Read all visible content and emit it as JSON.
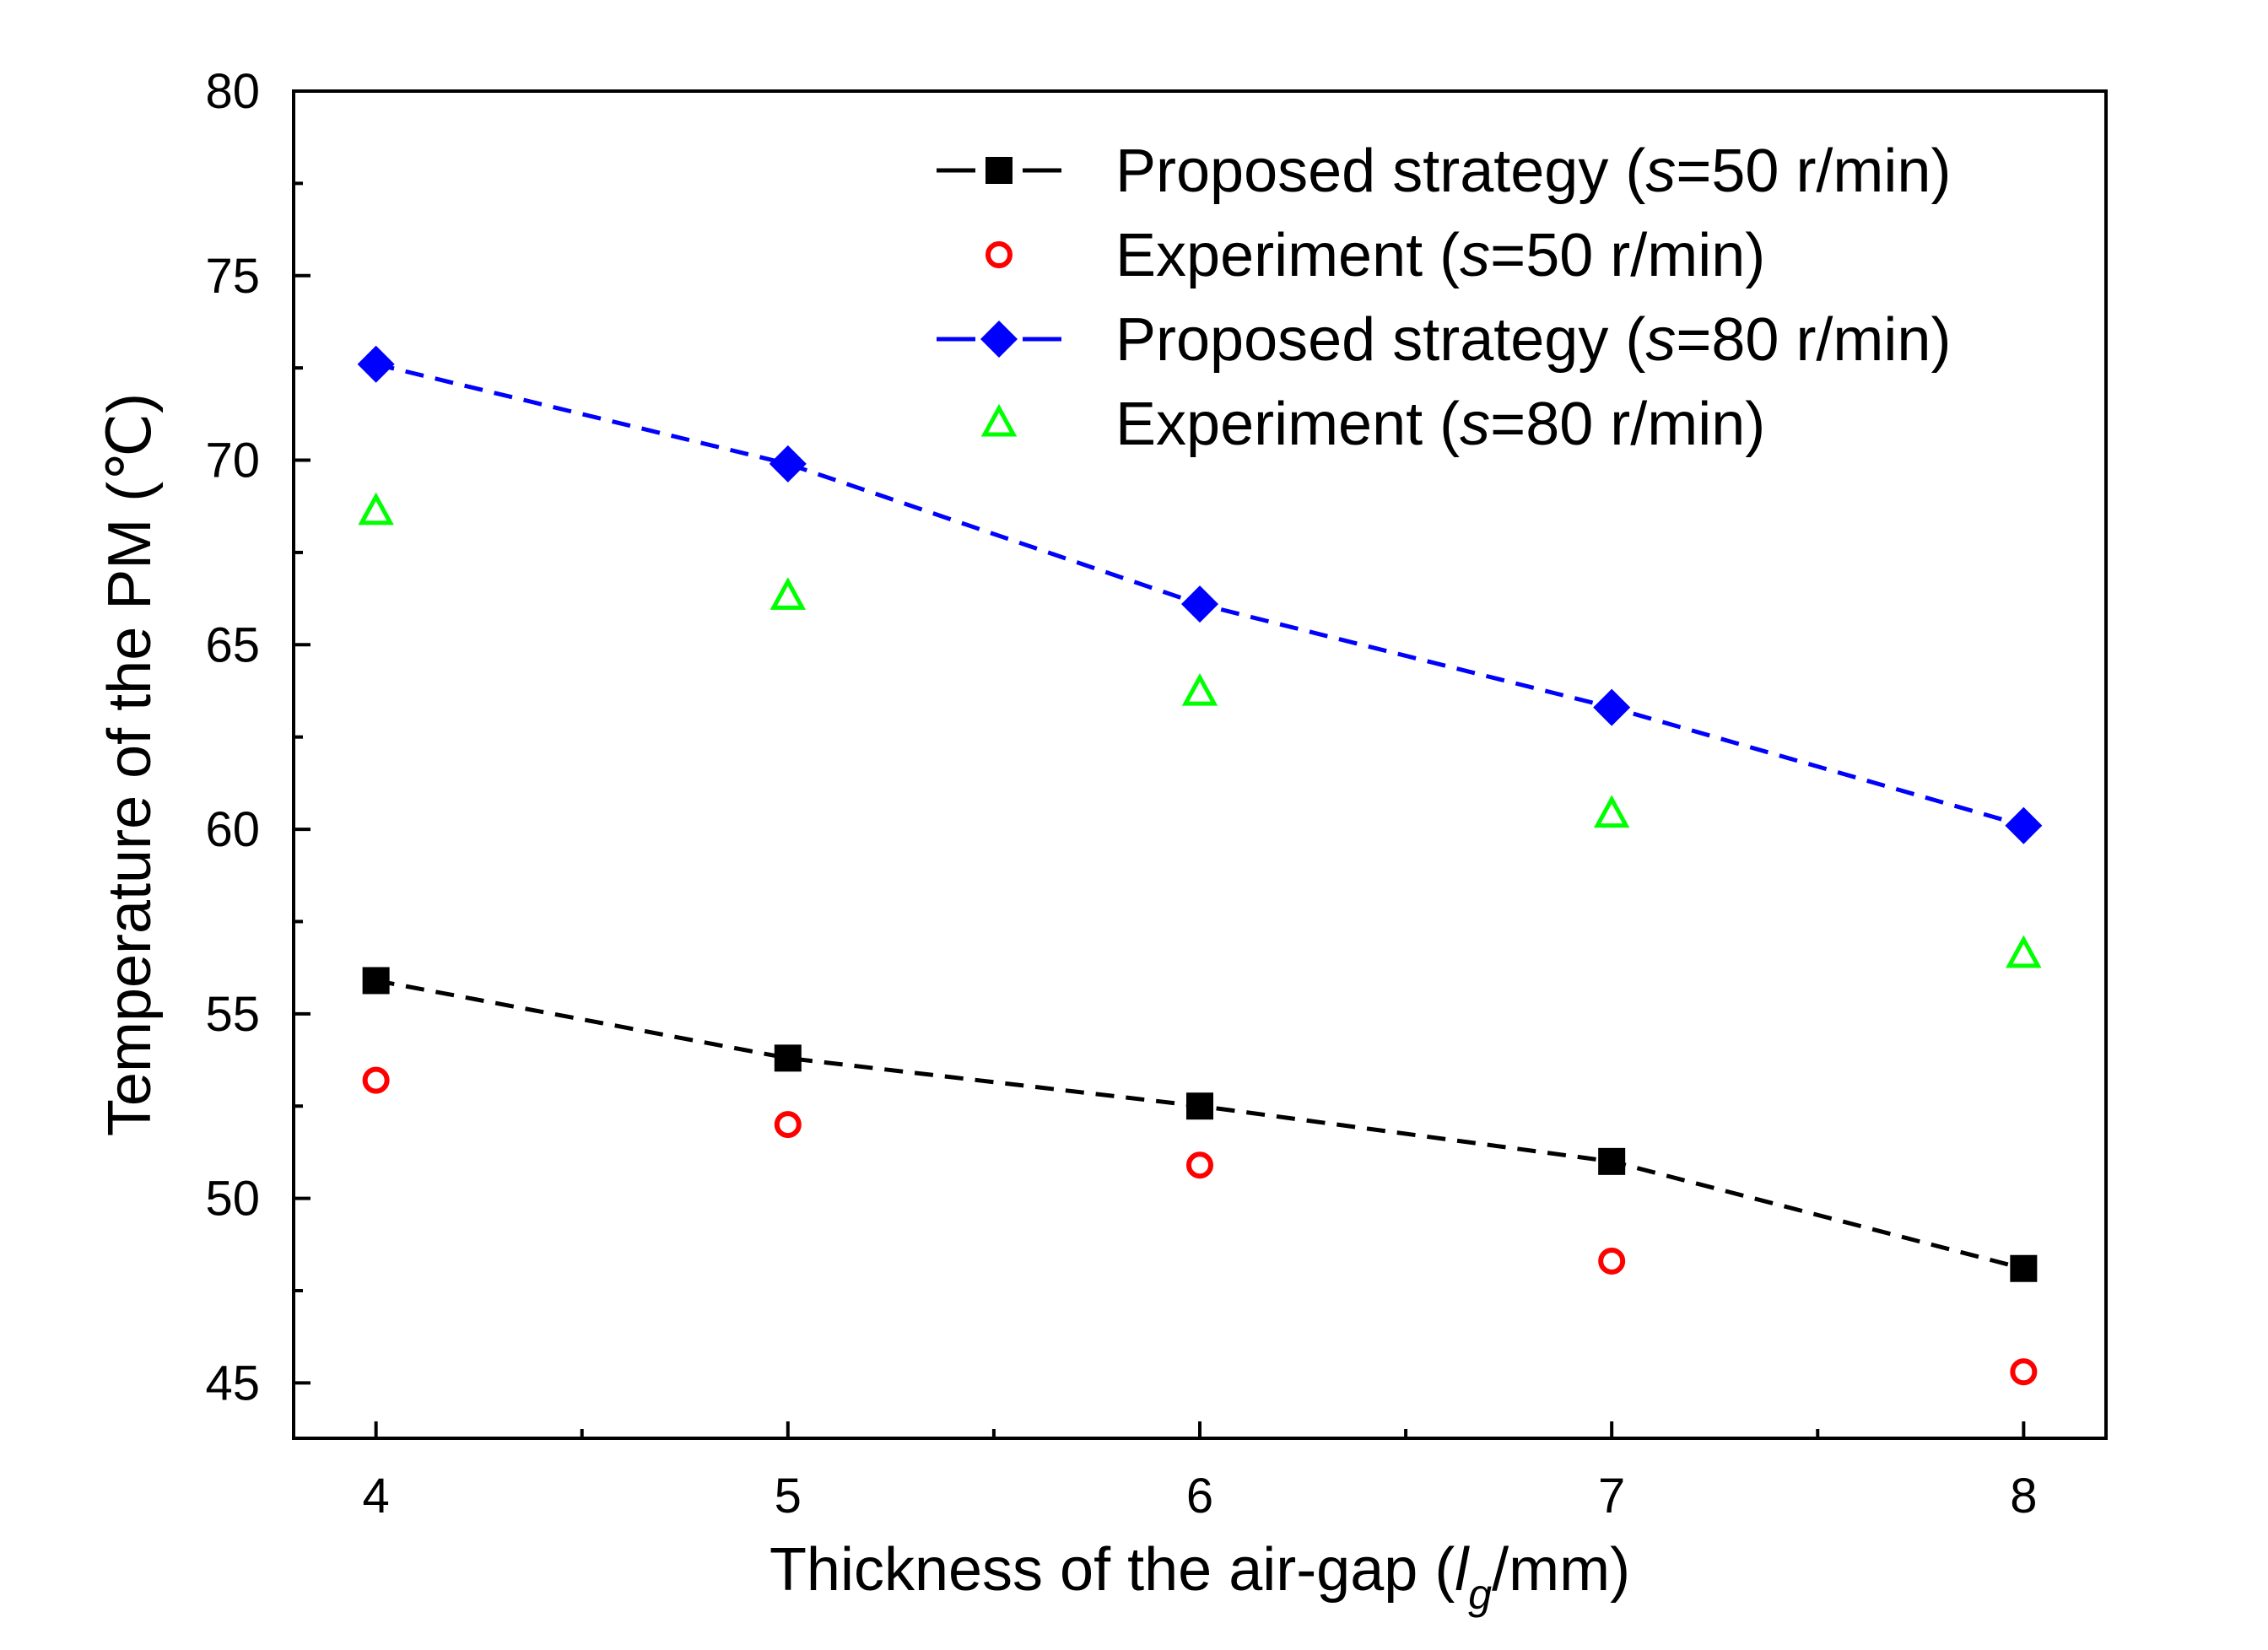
{
  "chart_data": {
    "type": "scatter",
    "xlabel": {
      "pre": "Thickness of the air-gap (",
      "var": "l",
      "sub": "g",
      "post": "/mm)"
    },
    "ylabel": "Temperature of the PM (℃)",
    "xlim": [
      3.8,
      8.2
    ],
    "ylim": [
      43.5,
      80
    ],
    "xticks": [
      4,
      5,
      6,
      7,
      8
    ],
    "yticks": [
      45,
      50,
      55,
      60,
      65,
      70,
      75,
      80
    ],
    "x": [
      4,
      5,
      6,
      7,
      8
    ],
    "series": [
      {
        "name": "Proposed strategy (s=50 r/min)",
        "label_pre": "Proposed strategy (",
        "label_var": "s",
        "label_post": "=50 r/min)",
        "values": [
          55.9,
          53.8,
          52.5,
          51.0,
          48.1
        ],
        "marker": "square",
        "color": "#000000",
        "line": "dashed"
      },
      {
        "name": "Experiment (s=50 r/min)",
        "label_pre": "Experiment (",
        "label_var": "s",
        "label_post": "=50 r/min)",
        "values": [
          53.2,
          52.0,
          50.9,
          48.3,
          45.3
        ],
        "marker": "circle-open",
        "color": "#ff0000",
        "line": "none"
      },
      {
        "name": "Proposed strategy (s=80 r/min)",
        "label_pre": "Proposed strategy (",
        "label_var": "s",
        "label_post": "=80 r/min)",
        "values": [
          72.6,
          69.9,
          66.1,
          63.3,
          60.1
        ],
        "marker": "diamond",
        "color": "#0000ff",
        "line": "dashed"
      },
      {
        "name": "Experiment (s=80 r/min)",
        "label_pre": "Experiment (",
        "label_var": "s",
        "label_post": "=80 r/min)",
        "values": [
          68.6,
          66.3,
          63.7,
          60.4,
          56.6
        ],
        "marker": "triangle-open",
        "color": "#00ff00",
        "line": "none"
      }
    ],
    "legend_position": "top-right",
    "grid": false
  }
}
